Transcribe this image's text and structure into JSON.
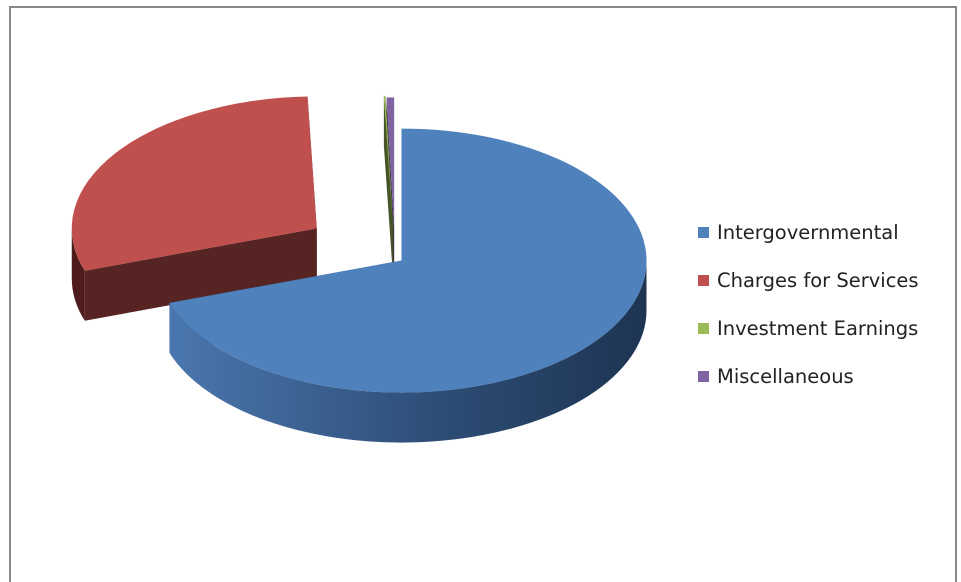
{
  "chart_data": {
    "type": "pie",
    "style": "3d-exploded",
    "title": "",
    "categories": [
      "Intergovernmental",
      "Charges for Services",
      "Investment Earnings",
      "Miscellaneous"
    ],
    "values": [
      69.8,
      29.6,
      0.1,
      0.5
    ],
    "unit": "percent (estimated)",
    "colors": [
      "#4F81BD",
      "#C0504D",
      "#9BBB59",
      "#8064A2"
    ],
    "legend_position": "right"
  }
}
